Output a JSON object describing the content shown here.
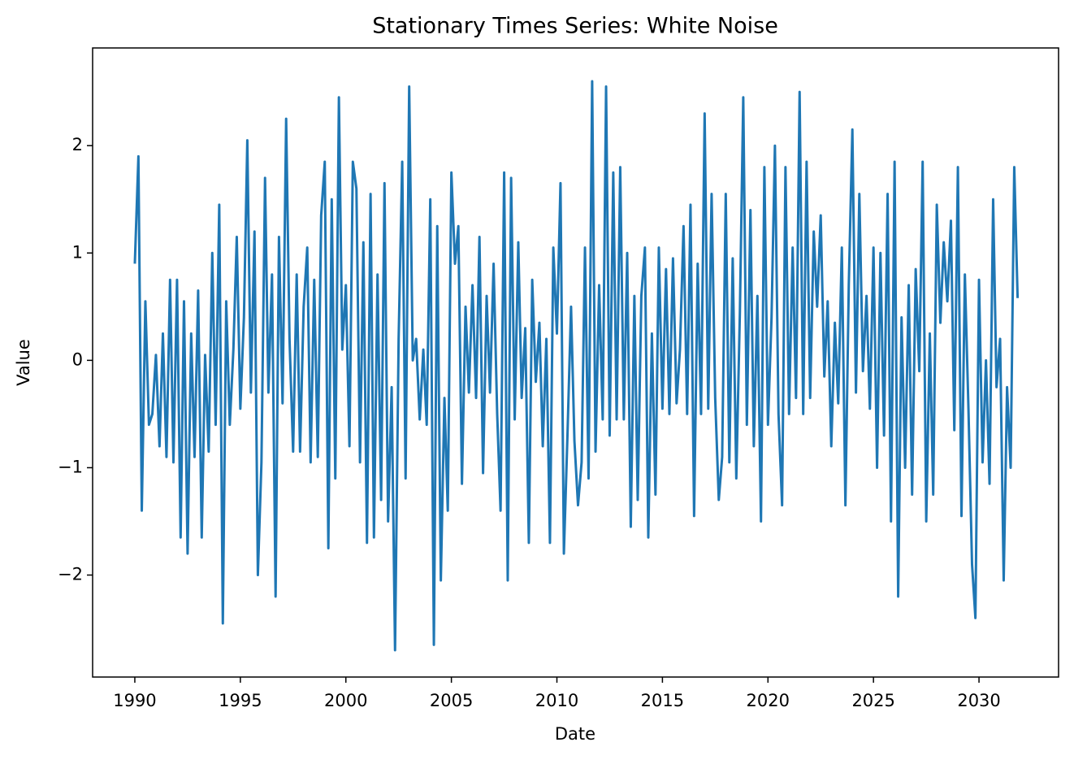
{
  "chart_data": {
    "type": "line",
    "title": "Stationary Times Series: White Noise",
    "x_label": "Date",
    "y_label": "Value",
    "color": "#1f77b4",
    "x": [
      1990,
      1990.17,
      1990.33,
      1990.5,
      1990.67,
      1990.83,
      1991,
      1991.17,
      1991.33,
      1991.5,
      1991.67,
      1991.83,
      1992,
      1992.17,
      1992.33,
      1992.5,
      1992.67,
      1992.83,
      1993,
      1993.17,
      1993.33,
      1993.5,
      1993.67,
      1993.83,
      1994,
      1994.17,
      1994.33,
      1994.5,
      1994.67,
      1994.83,
      1995,
      1995.17,
      1995.33,
      1995.5,
      1995.67,
      1995.83,
      1996,
      1996.17,
      1996.33,
      1996.5,
      1996.67,
      1996.83,
      1997,
      1997.17,
      1997.33,
      1997.5,
      1997.67,
      1997.83,
      1998,
      1998.17,
      1998.33,
      1998.5,
      1998.67,
      1998.83,
      1999,
      1999.17,
      1999.33,
      1999.5,
      1999.67,
      1999.83,
      2000,
      2000.17,
      2000.33,
      2000.5,
      2000.67,
      2000.83,
      2001,
      2001.17,
      2001.33,
      2001.5,
      2001.67,
      2001.83,
      2002,
      2002.17,
      2002.33,
      2002.5,
      2002.67,
      2002.83,
      2003,
      2003.17,
      2003.33,
      2003.5,
      2003.67,
      2003.83,
      2004,
      2004.17,
      2004.33,
      2004.5,
      2004.67,
      2004.83,
      2005,
      2005.17,
      2005.33,
      2005.5,
      2005.67,
      2005.83,
      2006,
      2006.17,
      2006.33,
      2006.5,
      2006.67,
      2006.83,
      2007,
      2007.17,
      2007.33,
      2007.5,
      2007.67,
      2007.83,
      2008,
      2008.17,
      2008.33,
      2008.5,
      2008.67,
      2008.83,
      2009,
      2009.17,
      2009.33,
      2009.5,
      2009.67,
      2009.83,
      2010,
      2010.17,
      2010.33,
      2010.5,
      2010.67,
      2010.83,
      2011,
      2011.17,
      2011.33,
      2011.5,
      2011.67,
      2011.83,
      2012,
      2012.17,
      2012.33,
      2012.5,
      2012.67,
      2012.83,
      2013,
      2013.17,
      2013.33,
      2013.5,
      2013.67,
      2013.83,
      2014,
      2014.17,
      2014.33,
      2014.5,
      2014.67,
      2014.83,
      2015,
      2015.17,
      2015.33,
      2015.5,
      2015.67,
      2015.83,
      2016,
      2016.17,
      2016.33,
      2016.5,
      2016.67,
      2016.83,
      2017,
      2017.17,
      2017.33,
      2017.5,
      2017.67,
      2017.83,
      2018,
      2018.17,
      2018.33,
      2018.5,
      2018.67,
      2018.83,
      2019,
      2019.17,
      2019.33,
      2019.5,
      2019.67,
      2019.83,
      2020,
      2020.17,
      2020.33,
      2020.5,
      2020.67,
      2020.83,
      2021,
      2021.17,
      2021.33,
      2021.5,
      2021.67,
      2021.83,
      2022,
      2022.17,
      2022.33,
      2022.5,
      2022.67,
      2022.83,
      2023,
      2023.17,
      2023.33,
      2023.5,
      2023.67,
      2023.83,
      2024,
      2024.17,
      2024.33,
      2024.5,
      2024.67,
      2024.83,
      2025,
      2025.17,
      2025.33,
      2025.5,
      2025.67,
      2025.83,
      2026,
      2026.17,
      2026.33,
      2026.5,
      2026.67,
      2026.83,
      2027,
      2027.17,
      2027.33,
      2027.5,
      2027.67,
      2027.83,
      2028,
      2028.17,
      2028.33,
      2028.5,
      2028.67,
      2028.83,
      2029,
      2029.17,
      2029.33,
      2029.5,
      2029.67,
      2029.83,
      2030,
      2030.17,
      2030.33,
      2030.5,
      2030.67,
      2030.83,
      2031,
      2031.17,
      2031.33,
      2031.5,
      2031.67,
      2031.83
    ],
    "values": [
      0.9,
      1.9,
      -1.4,
      0.55,
      -0.6,
      -0.5,
      0.05,
      -0.8,
      0.25,
      -0.9,
      0.75,
      -0.95,
      0.75,
      -1.65,
      0.55,
      -1.8,
      0.25,
      -0.9,
      0.65,
      -1.65,
      0.05,
      -0.85,
      1.0,
      -0.6,
      1.45,
      -2.45,
      0.55,
      -0.6,
      0.1,
      1.15,
      -0.45,
      0.4,
      2.05,
      -0.3,
      1.2,
      -2.0,
      -0.95,
      1.7,
      -0.3,
      0.8,
      -2.2,
      1.15,
      -0.4,
      2.25,
      0.2,
      -0.85,
      0.8,
      -0.85,
      0.5,
      1.05,
      -0.95,
      0.75,
      -0.9,
      1.35,
      1.85,
      -1.75,
      1.5,
      -1.1,
      2.45,
      0.1,
      0.7,
      -0.8,
      1.85,
      1.6,
      -0.95,
      1.1,
      -1.7,
      1.55,
      -1.65,
      0.8,
      -1.3,
      1.65,
      -1.5,
      -0.25,
      -2.7,
      0.2,
      1.85,
      -1.1,
      2.55,
      0.0,
      0.2,
      -0.55,
      0.1,
      -0.6,
      1.5,
      -2.65,
      1.25,
      -2.05,
      -0.35,
      -1.4,
      1.75,
      0.9,
      1.25,
      -1.15,
      0.5,
      -0.3,
      0.7,
      -0.35,
      1.15,
      -1.05,
      0.6,
      -0.3,
      0.9,
      -0.5,
      -1.4,
      1.75,
      -2.05,
      1.7,
      -0.55,
      1.1,
      -0.35,
      0.3,
      -1.7,
      0.75,
      -0.2,
      0.35,
      -0.8,
      0.2,
      -1.7,
      1.05,
      0.25,
      1.65,
      -1.8,
      -0.7,
      0.5,
      -0.75,
      -1.35,
      -0.95,
      1.05,
      -1.1,
      2.6,
      -0.85,
      0.7,
      -0.55,
      2.55,
      -0.7,
      1.75,
      -0.55,
      1.8,
      -0.55,
      1.0,
      -1.55,
      0.6,
      -1.3,
      0.6,
      1.05,
      -1.65,
      0.25,
      -1.25,
      1.05,
      -0.45,
      0.85,
      -0.5,
      0.95,
      -0.4,
      0.1,
      1.25,
      -0.5,
      1.45,
      -1.45,
      0.9,
      -0.5,
      2.3,
      -0.45,
      1.55,
      -0.35,
      -1.3,
      -0.9,
      1.55,
      -0.95,
      0.95,
      -1.1,
      0.45,
      2.45,
      -0.6,
      1.4,
      -0.8,
      0.6,
      -1.5,
      1.8,
      -0.6,
      0.4,
      2.0,
      -0.5,
      -1.35,
      1.8,
      -0.5,
      1.05,
      -0.35,
      2.5,
      -0.5,
      1.85,
      -0.35,
      1.2,
      0.5,
      1.35,
      -0.15,
      0.55,
      -0.8,
      0.35,
      -0.4,
      1.05,
      -1.35,
      0.7,
      2.15,
      -0.3,
      1.55,
      -0.1,
      0.6,
      -0.45,
      1.05,
      -1.0,
      1.0,
      -0.7,
      1.55,
      -1.5,
      1.85,
      -2.2,
      0.4,
      -1.0,
      0.7,
      -1.25,
      0.85,
      -0.1,
      1.85,
      -1.5,
      0.25,
      -1.25,
      1.45,
      0.35,
      1.1,
      0.55,
      1.3,
      -0.65,
      1.8,
      -1.45,
      0.8,
      -0.45,
      -1.9,
      -2.4,
      0.75,
      -0.95,
      0.0,
      -1.15,
      1.5,
      -0.25,
      0.2,
      -2.05,
      -0.25,
      -1.0,
      1.8,
      0.58
    ],
    "xlim": [
      1988,
      2033.77
    ],
    "xticks": [
      1990,
      1995,
      2000,
      2005,
      2010,
      2015,
      2020,
      2025,
      2030
    ],
    "ylim": [
      -2.95,
      2.91
    ],
    "yticks": [
      {
        "value": -2,
        "label": "−2"
      },
      {
        "value": -1,
        "label": "−1"
      },
      0,
      1,
      2
    ]
  }
}
